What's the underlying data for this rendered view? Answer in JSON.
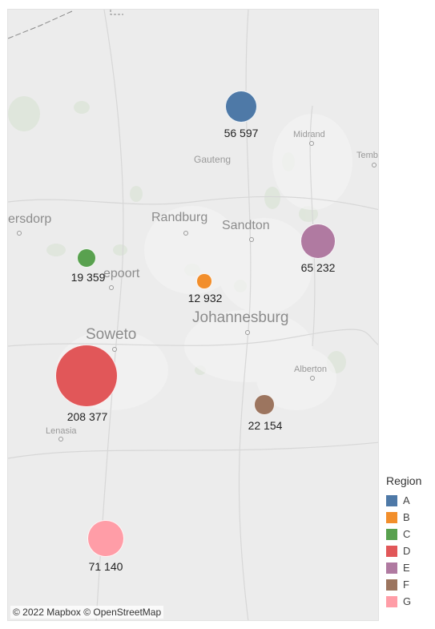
{
  "map": {
    "places": [
      {
        "name": "Midrand",
        "size": "small"
      },
      {
        "name": "Gauteng",
        "size": "small"
      },
      {
        "name": "Temb",
        "size": "small"
      },
      {
        "name": "ersdorp",
        "size": "mid"
      },
      {
        "name": "Randburg",
        "size": "mid"
      },
      {
        "name": "Sandton",
        "size": "mid"
      },
      {
        "name": "epoort",
        "size": "mid"
      },
      {
        "name": "Soweto",
        "size": "big"
      },
      {
        "name": "Johannesburg",
        "size": "big"
      },
      {
        "name": "Alberton",
        "size": "small"
      },
      {
        "name": "Lenasia",
        "size": "small"
      }
    ],
    "attribution": "© 2022 Mapbox © OpenStreetMap"
  },
  "regions": [
    {
      "region": "A",
      "value": 56597,
      "label": "56 597",
      "color": "#4e79a7"
    },
    {
      "region": "B",
      "value": 12932,
      "label": "12 932",
      "color": "#f28e2b"
    },
    {
      "region": "C",
      "value": 19359,
      "label": "19 359",
      "color": "#59a14f"
    },
    {
      "region": "D",
      "value": 208377,
      "label": "208 377",
      "color": "#e15759"
    },
    {
      "region": "E",
      "value": 65232,
      "label": "65 232",
      "color": "#b07aa1"
    },
    {
      "region": "F",
      "value": 22154,
      "label": "22 154",
      "color": "#9c755f"
    },
    {
      "region": "G",
      "value": 71140,
      "label": "71 140",
      "color": "#ff9da7"
    }
  ],
  "legend": {
    "title": "Region"
  }
}
